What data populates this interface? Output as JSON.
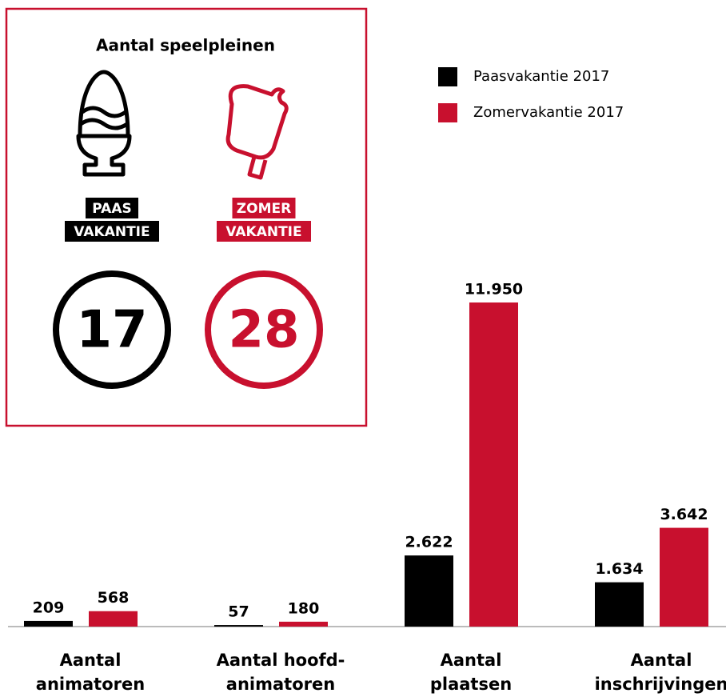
{
  "chart_data": {
    "type": "bar",
    "categories": [
      "Aantal\nanimatoren",
      "Aantal hoofd-\nanimatoren",
      "Aantal\nplaatsen",
      "Aantal\ninschrijvingen"
    ],
    "series": [
      {
        "name": "Paasvakantie 2017",
        "color": "#000000",
        "values": [
          209,
          57,
          2622,
          1634
        ],
        "value_labels": [
          "209",
          "57",
          "2.622",
          "1.634"
        ]
      },
      {
        "name": "Zomervakantie 2017",
        "color": "#c8102e",
        "values": [
          568,
          180,
          11950,
          3642
        ],
        "value_labels": [
          "568",
          "180",
          "11.950",
          "3.642"
        ]
      }
    ],
    "legend": "top-right"
  },
  "inset": {
    "title": "Aantal speelpleinen",
    "items": [
      {
        "label": [
          "PAAS",
          "VAKANTIE"
        ],
        "value": 17,
        "color": "#000000"
      },
      {
        "label": [
          "ZOMER",
          "VAKANTIE"
        ],
        "value": 28,
        "color": "#c8102e"
      }
    ]
  }
}
